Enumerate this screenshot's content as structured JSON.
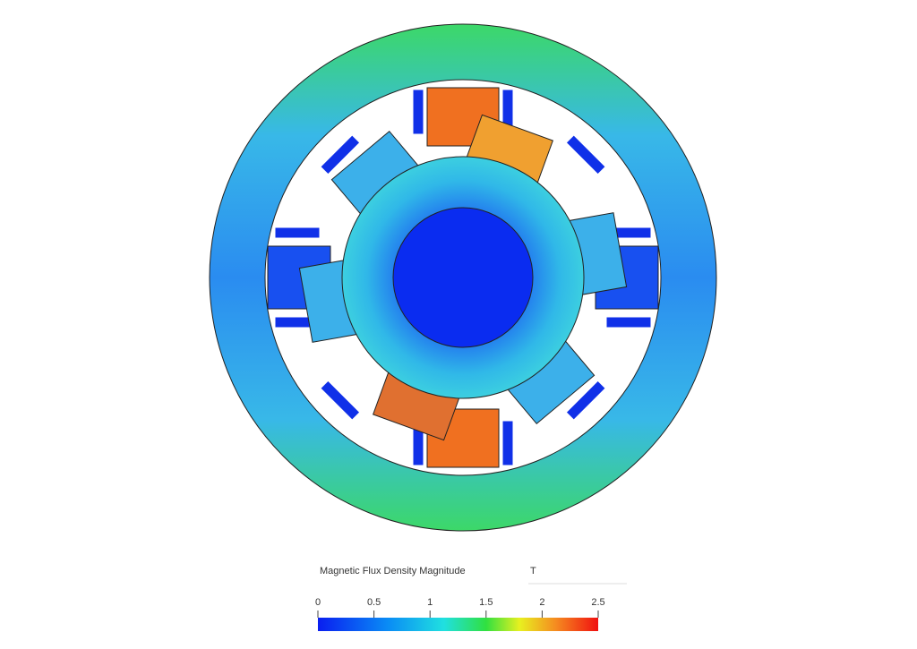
{
  "legend": {
    "title": "Magnetic Flux Density Magnitude",
    "unit": "T",
    "range": [
      0,
      2.5
    ],
    "ticks": [
      0,
      0.5,
      1,
      1.5,
      2,
      2.5
    ]
  }
}
